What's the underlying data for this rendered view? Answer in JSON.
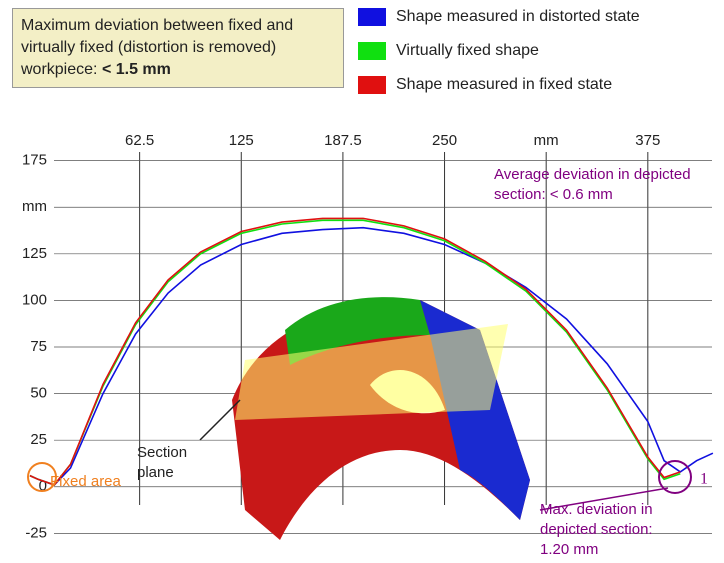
{
  "chart_data": {
    "type": "line",
    "info_box": {
      "text": "Maximum deviation  between fixed and virtually fixed (distortion is removed) workpiece:",
      "emphasis": "< 1.5 mm"
    },
    "x": [
      -5,
      0,
      10,
      20,
      40,
      60,
      80,
      100,
      125,
      150,
      175,
      200,
      225,
      250,
      275,
      300,
      325,
      350,
      375,
      385,
      395,
      405,
      415
    ],
    "series": [
      {
        "name": "Shape measured in distorted state",
        "color": "#1010e0",
        "values": [
          6,
          4,
          1,
          10,
          50,
          82,
          104,
          119,
          130,
          136,
          138,
          139,
          136,
          130,
          120,
          107,
          90,
          66,
          35,
          14,
          8,
          14,
          18
        ]
      },
      {
        "name": "Virtually fixed shape",
        "color": "#10e010",
        "values": [
          6,
          4,
          1,
          12,
          54,
          87,
          110,
          125,
          136,
          141,
          143,
          143,
          139,
          132,
          120,
          105,
          83,
          52,
          15,
          4,
          7,
          null,
          null
        ]
      },
      {
        "name": "Shape measured in fixed state",
        "color": "#e01010",
        "values": [
          6,
          4,
          1,
          12,
          55,
          88,
          111,
          126,
          137,
          142,
          144,
          144,
          140,
          133,
          121,
          106,
          84,
          53,
          16,
          5,
          8,
          null,
          null
        ]
      }
    ],
    "xlim": [
      -15,
      420
    ],
    "ylim": [
      -35,
      185
    ],
    "xticks": [
      62.5,
      125,
      187.5,
      250,
      {
        "value": 312.5,
        "label": "mm"
      },
      375
    ],
    "yticks": [
      -25,
      0,
      25,
      50,
      75,
      100,
      125,
      {
        "value": 150,
        "label": "mm"
      },
      175
    ],
    "grid": true,
    "annotations": {
      "average": "Average deviation in depicted section: < 0.6 mm",
      "section": "Section plane",
      "fixed": "Fixed area",
      "max": "Max. deviation in depicted section: 1.20 mm",
      "marker": "1"
    }
  }
}
